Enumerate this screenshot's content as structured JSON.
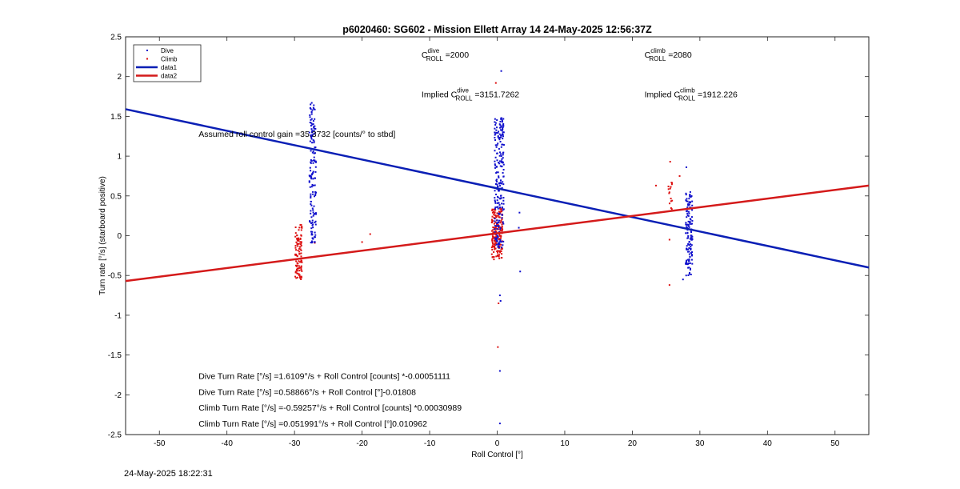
{
  "chart_data": {
    "type": "scatter",
    "title": "p6020460: SG602 - Mission Ellett Array 14 24-May-2025 12:56:37Z",
    "xlabel": "Roll Control [°]",
    "ylabel": "Turn rate [°/s] (starboard positive)",
    "xlim": [
      -55,
      55
    ],
    "ylim": [
      -2.5,
      2.5
    ],
    "xticks": [
      -50,
      -40,
      -30,
      -20,
      -10,
      0,
      10,
      20,
      30,
      40,
      50
    ],
    "yticks": [
      -2.5,
      -2,
      -1.5,
      -1,
      -0.5,
      0,
      0.5,
      1,
      1.5,
      2,
      2.5
    ],
    "grid": false,
    "legend_position": "top-left",
    "colors": {
      "dive": "#1010cc",
      "climb": "#dd1111",
      "data1": "#0a1fb5",
      "data2": "#d41a1a"
    },
    "legend": [
      "Dive",
      "Climb",
      "data1",
      "data2"
    ],
    "series": [
      {
        "name": "Dive",
        "kind": "points",
        "clusters": [
          {
            "x": -27.3,
            "x_spread": 0.5,
            "y_min": -0.1,
            "y_max": 1.68,
            "n": 150
          },
          {
            "x": 0.3,
            "x_spread": 0.7,
            "y_min": -0.15,
            "y_max": 1.48,
            "n": 220
          },
          {
            "x": 28.4,
            "x_spread": 0.5,
            "y_min": -0.5,
            "y_max": 0.55,
            "n": 130
          }
        ],
        "points": [
          {
            "x": 0.6,
            "y": 2.07
          },
          {
            "x": 0.4,
            "y": -1.7
          },
          {
            "x": 0.4,
            "y": -2.36
          },
          {
            "x": 0.5,
            "y": -0.82
          },
          {
            "x": 0.4,
            "y": -0.75
          },
          {
            "x": 3.3,
            "y": 0.29
          },
          {
            "x": 3.4,
            "y": -0.45
          },
          {
            "x": 3.2,
            "y": 0.1
          },
          {
            "x": 28.0,
            "y": 0.86
          },
          {
            "x": 27.5,
            "y": -0.55
          }
        ]
      },
      {
        "name": "Climb",
        "kind": "points",
        "clusters": [
          {
            "x": -29.4,
            "x_spread": 0.5,
            "y_min": -0.55,
            "y_max": 0.15,
            "n": 110
          },
          {
            "x": 0.0,
            "x_spread": 0.8,
            "y_min": -0.3,
            "y_max": 0.35,
            "n": 180
          },
          {
            "x": 25.6,
            "x_spread": 0.3,
            "y_min": 0.3,
            "y_max": 0.7,
            "n": 15
          }
        ],
        "points": [
          {
            "x": -0.2,
            "y": 1.92
          },
          {
            "x": 0.1,
            "y": -1.4
          },
          {
            "x": 0.2,
            "y": -0.85
          },
          {
            "x": -20.0,
            "y": -0.08
          },
          {
            "x": -18.8,
            "y": 0.02
          },
          {
            "x": -27.0,
            "y": -0.09
          },
          {
            "x": 25.6,
            "y": 0.93
          },
          {
            "x": 25.5,
            "y": -0.62
          },
          {
            "x": 23.5,
            "y": 0.63
          },
          {
            "x": 27.0,
            "y": 0.75
          },
          {
            "x": 25.5,
            "y": -0.05
          }
        ]
      },
      {
        "name": "data1",
        "kind": "line",
        "x": [
          -55,
          55
        ],
        "y": [
          1.59,
          -0.4
        ]
      },
      {
        "name": "data2",
        "kind": "line",
        "x": [
          -55,
          55
        ],
        "y": [
          -0.57,
          0.63
        ]
      }
    ],
    "annotations": [
      {
        "x": -11.2,
        "y": 2.24,
        "text": "C",
        "sup": "dive",
        "sub": "ROLL",
        "after": " =2000"
      },
      {
        "x": 21.8,
        "y": 2.24,
        "text": "C",
        "sup": "climb",
        "sub": "ROLL",
        "after": " =2080"
      },
      {
        "x": -11.2,
        "y": 1.74,
        "prefix": "Implied ",
        "text": "C",
        "sup": "dive",
        "sub": "ROLL",
        "after": " =3151.7262"
      },
      {
        "x": 21.8,
        "y": 1.74,
        "prefix": "Implied ",
        "text": "C",
        "sup": "climb",
        "sub": "ROLL",
        "after": " =1912.226"
      },
      {
        "x": -44.2,
        "y": 1.24,
        "text": "Assumed roll control gain =35.3732 [counts/° to stbd]"
      },
      {
        "x": -44.2,
        "y": -1.8,
        "text": "Dive Turn Rate [°/s] =1.6109°/s + Roll Control [counts] *-0.00051111"
      },
      {
        "x": -44.2,
        "y": -2.0,
        "text": "Dive Turn Rate [°/s] =0.58866°/s + Roll Control [°]-0.01808"
      },
      {
        "x": -44.2,
        "y": -2.2,
        "text": "Climb Turn Rate [°/s] =-0.59257°/s + Roll Control [counts] *0.00030989"
      },
      {
        "x": -44.2,
        "y": -2.4,
        "text": "Climb Turn Rate [°/s] =0.051991°/s + Roll Control [°]0.010962"
      }
    ]
  },
  "footer": {
    "timestamp": "24-May-2025 18:22:31"
  }
}
